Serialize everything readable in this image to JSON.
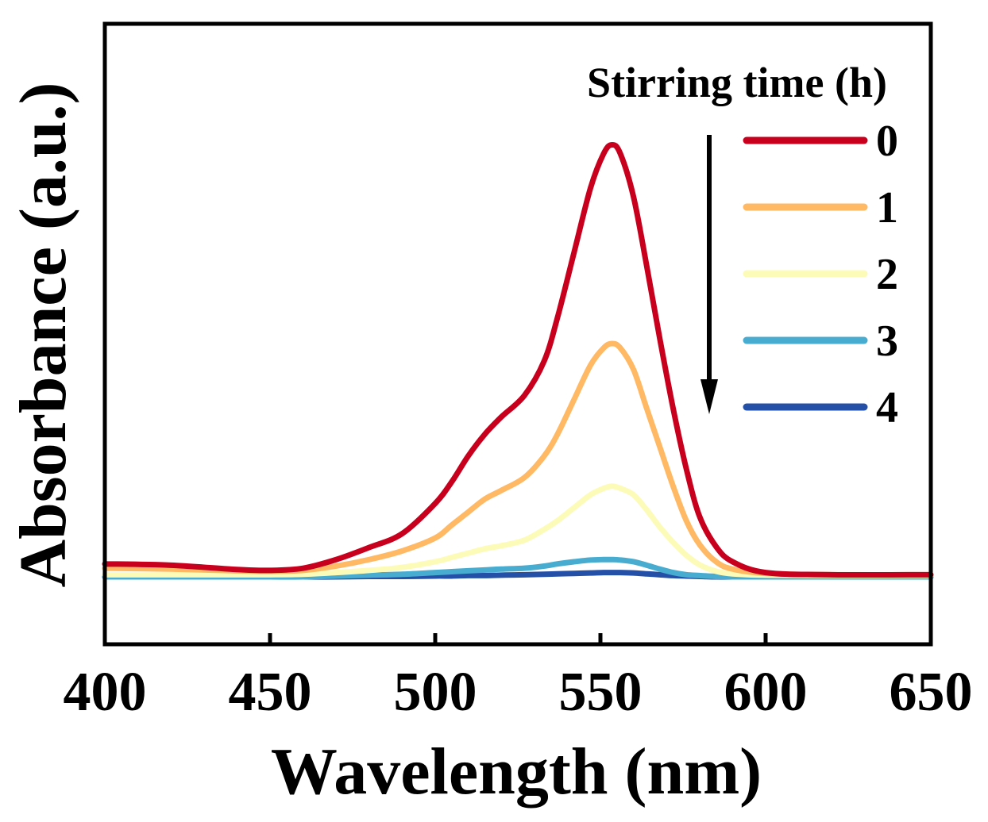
{
  "chart_data": {
    "type": "line",
    "title": "",
    "xlabel": "Wavelength (nm)",
    "ylabel": "Absorbance (a.u.)",
    "xlim": [
      400,
      650
    ],
    "ylim": [
      -0.156,
      1.28
    ],
    "xticks": [
      400,
      450,
      500,
      550,
      600,
      650
    ],
    "xtick_labels": [
      "400",
      "450",
      "500",
      "550",
      "600",
      "650"
    ],
    "grid": false,
    "legend": {
      "title": "Stirring time (h)",
      "placement": "top-right",
      "arrow": "decreasing"
    },
    "x": [
      400,
      420,
      440,
      450,
      460,
      470,
      480,
      490,
      500,
      505,
      510,
      515,
      520,
      527,
      533,
      537,
      542,
      547,
      551,
      553.5,
      556,
      560,
      564,
      568,
      572,
      576,
      580,
      585,
      590,
      600,
      620,
      650
    ],
    "series": [
      {
        "name": "0",
        "color": "#c8001e",
        "values": [
          0.03,
          0.027,
          0.017,
          0.015,
          0.02,
          0.04,
          0.068,
          0.1,
          0.17,
          0.22,
          0.28,
          0.33,
          0.37,
          0.42,
          0.5,
          0.6,
          0.75,
          0.9,
          0.98,
          1.0,
          0.98,
          0.88,
          0.72,
          0.55,
          0.39,
          0.25,
          0.14,
          0.07,
          0.035,
          0.01,
          0.005,
          0.005
        ]
      },
      {
        "name": "1",
        "color": "#ffb964",
        "values": [
          0.02,
          0.018,
          0.014,
          0.013,
          0.015,
          0.025,
          0.04,
          0.06,
          0.09,
          0.12,
          0.15,
          0.18,
          0.2,
          0.23,
          0.28,
          0.33,
          0.41,
          0.49,
          0.53,
          0.54,
          0.53,
          0.48,
          0.39,
          0.3,
          0.21,
          0.13,
          0.075,
          0.035,
          0.018,
          0.008,
          0.005,
          0.005
        ]
      },
      {
        "name": "2",
        "color": "#fdfbb8",
        "values": [
          0.005,
          0.005,
          0.005,
          0.005,
          0.006,
          0.01,
          0.015,
          0.022,
          0.035,
          0.045,
          0.055,
          0.065,
          0.072,
          0.085,
          0.11,
          0.13,
          0.16,
          0.19,
          0.205,
          0.21,
          0.205,
          0.19,
          0.155,
          0.115,
          0.08,
          0.05,
          0.028,
          0.013,
          0.007,
          0.004,
          0.003,
          0.003
        ]
      },
      {
        "name": "3",
        "color": "#48acd0",
        "values": [
          0,
          0,
          0,
          0,
          0,
          0.002,
          0.004,
          0.006,
          0.01,
          0.012,
          0.014,
          0.016,
          0.018,
          0.02,
          0.025,
          0.03,
          0.035,
          0.039,
          0.04,
          0.04,
          0.039,
          0.035,
          0.027,
          0.018,
          0.01,
          0.005,
          0.003,
          0.001,
          0,
          0,
          0,
          0
        ]
      },
      {
        "name": "4",
        "color": "#2450a8",
        "values": [
          0,
          0,
          0,
          0,
          0,
          0,
          0.001,
          0.001,
          0.002,
          0.002,
          0.003,
          0.003,
          0.004,
          0.005,
          0.006,
          0.007,
          0.008,
          0.009,
          0.01,
          0.01,
          0.01,
          0.009,
          0.007,
          0.005,
          0.003,
          0.002,
          0.001,
          0,
          0,
          0,
          0,
          0
        ]
      }
    ]
  }
}
